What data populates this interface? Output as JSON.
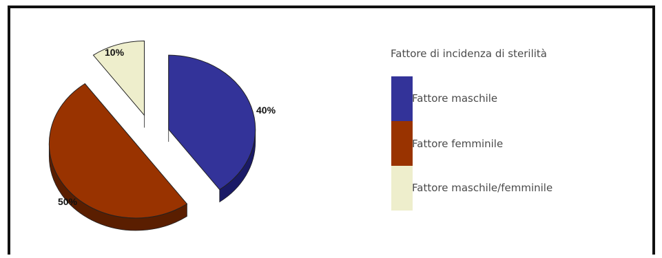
{
  "chart_data": {
    "type": "pie",
    "style": "3d-exploded",
    "title": "Fattore di incidenza di sterilità",
    "legend_position": "right",
    "slices": [
      {
        "name": "Fattore maschile",
        "value": 40,
        "label": "40%",
        "color": "#333399",
        "side_color": "#1a1a66"
      },
      {
        "name": "Fattore femminile",
        "value": 50,
        "label": "50%",
        "color": "#993300",
        "side_color": "#5a1e00"
      },
      {
        "name": "Fattore maschile/femminile",
        "value": 10,
        "label": "10%",
        "color": "#eeeecc",
        "side_color": "#999977"
      }
    ]
  }
}
